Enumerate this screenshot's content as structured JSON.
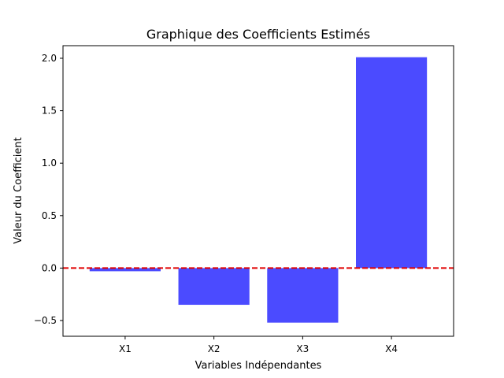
{
  "chart_data": {
    "type": "bar",
    "title": "Graphique des Coefficients Estimés",
    "xlabel": "Variables Indépendantes",
    "ylabel": "Valeur du Coefficient",
    "categories": [
      "X1",
      "X2",
      "X3",
      "X4"
    ],
    "values": [
      -0.03,
      -0.35,
      -0.52,
      2.01
    ],
    "ylim": [
      -0.65,
      2.12
    ],
    "yticks": [
      -0.5,
      0.0,
      0.5,
      1.0,
      1.5,
      2.0
    ],
    "ytick_labels": [
      "−0.5",
      "0.0",
      "0.5",
      "1.0",
      "1.5",
      "2.0"
    ],
    "reference_line": {
      "y": 0,
      "style": "dashed",
      "color": "#e00000"
    },
    "bar_color": "#4b4bff",
    "grid": false,
    "legend": "none"
  }
}
